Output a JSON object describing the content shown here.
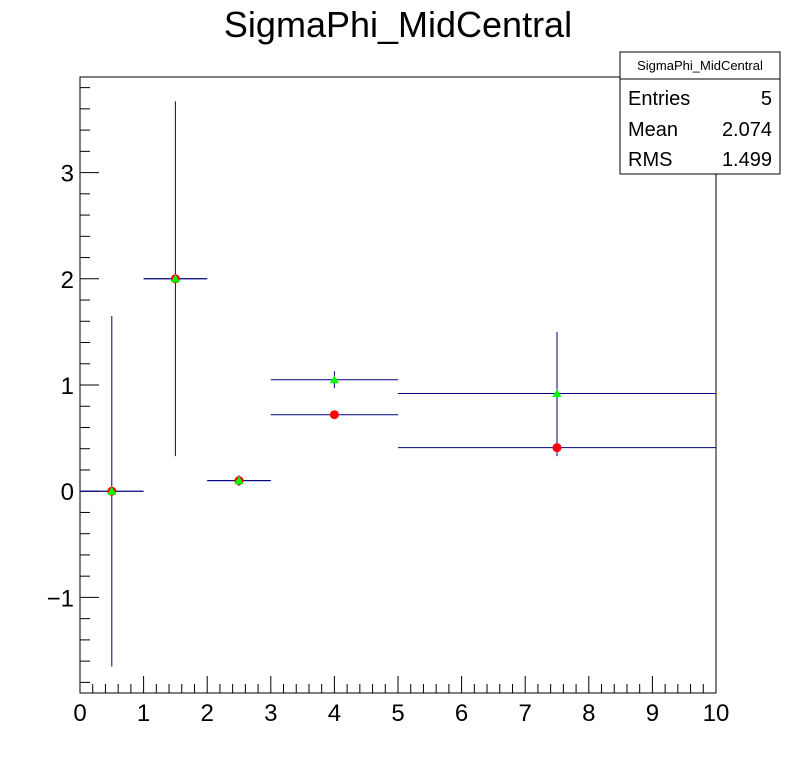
{
  "chart_data": {
    "type": "scatter",
    "title": "SigmaPhi_MidCentral",
    "xlabel": "",
    "ylabel": "",
    "xlim": [
      0,
      10
    ],
    "ylim": [
      -1.9,
      3.9
    ],
    "x_ticks": [
      "0",
      "1",
      "2",
      "3",
      "4",
      "5",
      "6",
      "7",
      "8",
      "9",
      "10"
    ],
    "y_ticks": [
      {
        "value": -1,
        "label": "−1"
      },
      {
        "value": 0,
        "label": "0"
      },
      {
        "value": 1,
        "label": "1"
      },
      {
        "value": 2,
        "label": "2"
      },
      {
        "value": 3,
        "label": "3"
      }
    ],
    "grid": false,
    "series": [
      {
        "marker": "circle",
        "color": "#ff0000",
        "points": [
          {
            "x": 0.5,
            "y": 0.0,
            "xerr": 0.5,
            "yerr": 1.65
          },
          {
            "x": 1.5,
            "y": 2.0,
            "xerr": 0.5,
            "yerr": 1.67
          },
          {
            "x": 2.5,
            "y": 0.1,
            "xerr": 0.5,
            "yerr": 0.05
          },
          {
            "x": 4.0,
            "y": 0.72,
            "xerr": 1.0,
            "yerr": 0.0
          },
          {
            "x": 7.5,
            "y": 0.41,
            "xerr": 2.5,
            "yerr": 0.08
          }
        ]
      },
      {
        "marker": "triangle",
        "color": "#00ff00",
        "points": [
          {
            "x": 0.5,
            "y": 0.0,
            "xerr": 0.5,
            "yerr": 0.0
          },
          {
            "x": 1.5,
            "y": 2.0,
            "xerr": 0.5,
            "yerr": 0.0
          },
          {
            "x": 2.5,
            "y": 0.1,
            "xerr": 0.5,
            "yerr": 0.0
          },
          {
            "x": 4.0,
            "y": 1.05,
            "xerr": 1.0,
            "yerr": 0.08
          },
          {
            "x": 7.5,
            "y": 0.92,
            "xerr": 2.5,
            "yerr": 0.58
          }
        ]
      }
    ]
  },
  "stats_box": {
    "name": "SigmaPhi_MidCentral",
    "rows": [
      {
        "label": "Entries",
        "value": "5"
      },
      {
        "label": "Mean",
        "value": "2.074"
      },
      {
        "label": "RMS",
        "value": "1.499"
      }
    ]
  },
  "colors": {
    "error_bar": "#000080",
    "marker_red": "#ff0000",
    "marker_green": "#00ff00",
    "axis": "#000000"
  }
}
